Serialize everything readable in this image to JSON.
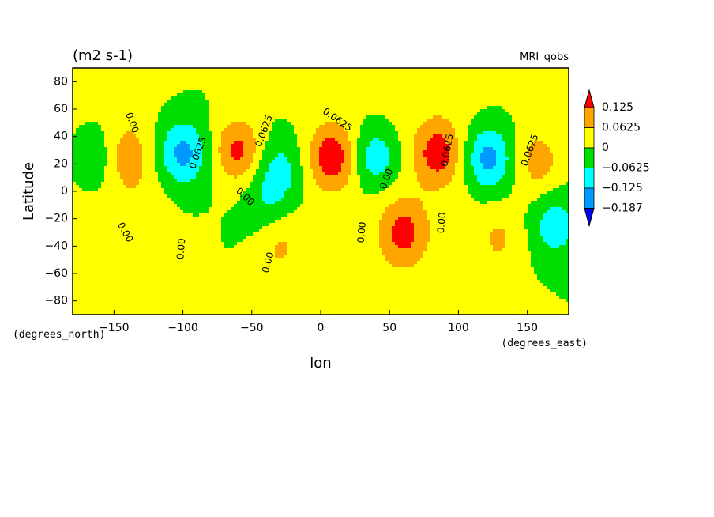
{
  "chart_data": {
    "type": "heatmap",
    "title": "(m2 s-1)",
    "subtitle": "MRI_qobs",
    "xlabel": "lon",
    "ylabel": "Latitude",
    "x_unit": "(degrees_east)",
    "y_unit": "(degrees_north)",
    "xlim": [
      -180,
      180
    ],
    "ylim": [
      -90,
      90
    ],
    "x_ticks": [
      -150,
      -100,
      -50,
      0,
      50,
      100,
      150
    ],
    "y_ticks": [
      80,
      60,
      40,
      20,
      0,
      -20,
      -40,
      -60,
      -80
    ],
    "colorbar": {
      "levels": [
        0.125,
        0.0625,
        0,
        -0.0625,
        -0.125,
        -0.187
      ],
      "labels": [
        "0.125",
        "0.0625",
        "0",
        "−0.0625",
        "−0.125",
        "−0.187"
      ],
      "colors": [
        "#ff0000",
        "#ffa500",
        "#ffff00",
        "#00dd00",
        "#00ffff",
        "#0099ff",
        "#0000ff"
      ]
    },
    "features": [
      {
        "lon": -140,
        "lat": 25,
        "value": 0.09
      },
      {
        "lon": -100,
        "lat": 28,
        "value": -0.15
      },
      {
        "lon": -130,
        "lat": -20,
        "value": 0.04
      },
      {
        "lon": -60,
        "lat": 30,
        "value": 0.14
      },
      {
        "lon": -30,
        "lat": 15,
        "value": -0.09
      },
      {
        "lon": -40,
        "lat": -10,
        "value": -0.05
      },
      {
        "lon": -30,
        "lat": -40,
        "value": 0.07
      },
      {
        "lon": 8,
        "lat": 25,
        "value": 0.16
      },
      {
        "lon": 40,
        "lat": 25,
        "value": -0.12
      },
      {
        "lon": 60,
        "lat": -30,
        "value": 0.13
      },
      {
        "lon": 85,
        "lat": 28,
        "value": 0.14
      },
      {
        "lon": 122,
        "lat": 24,
        "value": -0.16
      },
      {
        "lon": 158,
        "lat": 22,
        "value": 0.09
      },
      {
        "lon": 170,
        "lat": -25,
        "value": -0.1
      },
      {
        "lon": 130,
        "lat": -35,
        "value": 0.06
      },
      {
        "lon": -165,
        "lat": 25,
        "value": -0.08
      }
    ],
    "contour_labels": [
      {
        "text": "0.00",
        "lon": -137,
        "lat": 50,
        "rot": 70
      },
      {
        "text": "0.0625",
        "lon": -89,
        "lat": 28,
        "rot": -70
      },
      {
        "text": "0.0625",
        "lon": -41,
        "lat": 44,
        "rot": -70
      },
      {
        "text": "0.0625",
        "lon": 12,
        "lat": 52,
        "rot": 35
      },
      {
        "text": "0.00",
        "lon": 48,
        "lat": 9,
        "rot": -70
      },
      {
        "text": "0.0625",
        "lon": 92,
        "lat": 30,
        "rot": -80
      },
      {
        "text": "0.0625",
        "lon": 152,
        "lat": 30,
        "rot": -70
      },
      {
        "text": "0.00",
        "lon": -55,
        "lat": -4,
        "rot": 45
      },
      {
        "text": "0.00",
        "lon": -142,
        "lat": -30,
        "rot": 60
      },
      {
        "text": "0.00",
        "lon": -101,
        "lat": -42,
        "rot": -85
      },
      {
        "text": "0.00",
        "lon": -38,
        "lat": -52,
        "rot": -75
      },
      {
        "text": "0.00",
        "lon": 30,
        "lat": -30,
        "rot": -85
      },
      {
        "text": "0.00",
        "lon": 88,
        "lat": -23,
        "rot": -85
      }
    ]
  }
}
